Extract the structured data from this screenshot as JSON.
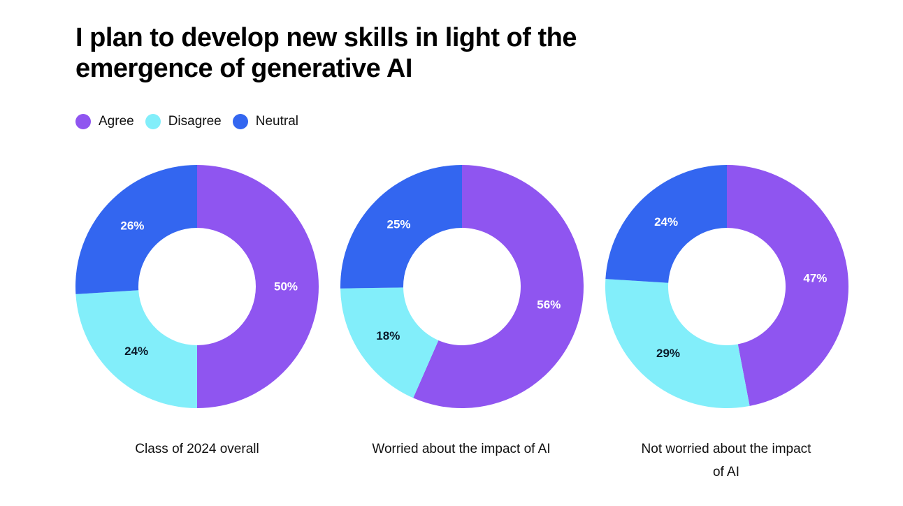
{
  "title": "I plan to develop new skills in light of the emergence of generative AI",
  "legend": [
    {
      "label": "Agree",
      "color": "#8f55f0"
    },
    {
      "label": "Disagree",
      "color": "#82eefa"
    },
    {
      "label": "Neutral",
      "color": "#3366f0"
    }
  ],
  "chart_data": [
    {
      "type": "pie",
      "caption": "Class of 2024 overall",
      "slices": [
        {
          "label": "Agree",
          "value": 50,
          "text": "50%"
        },
        {
          "label": "Disagree",
          "value": 24,
          "text": "24%"
        },
        {
          "label": "Neutral",
          "value": 26,
          "text": "26%"
        }
      ]
    },
    {
      "type": "pie",
      "caption": "Worried about the impact of AI",
      "slices": [
        {
          "label": "Agree",
          "value": 56,
          "text": "56%"
        },
        {
          "label": "Disagree",
          "value": 18,
          "text": "18%"
        },
        {
          "label": "Neutral",
          "value": 25,
          "text": "25%"
        }
      ]
    },
    {
      "type": "pie",
      "caption": "Not worried about the impact of AI",
      "slices": [
        {
          "label": "Agree",
          "value": 47,
          "text": "47%"
        },
        {
          "label": "Disagree",
          "value": 29,
          "text": "29%"
        },
        {
          "label": "Neutral",
          "value": 24,
          "text": "24%"
        }
      ]
    }
  ]
}
